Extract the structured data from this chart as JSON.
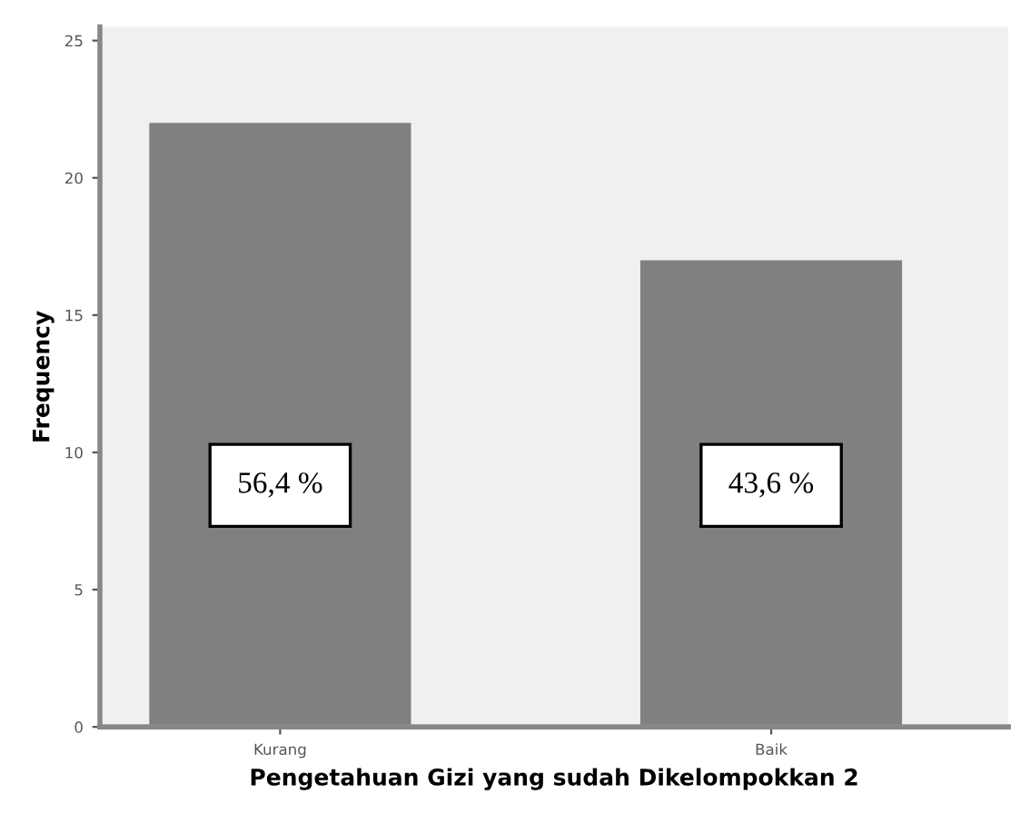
{
  "chart_data": {
    "type": "bar",
    "xlabel": "Pengetahuan Gizi yang sudah Dikelompokkan 2",
    "ylabel": "Frequency",
    "categories": [
      "Kurang",
      "Baik"
    ],
    "values": [
      22,
      17
    ],
    "color": "#808080",
    "ylim": [
      0,
      25.5
    ],
    "yticks": [
      0,
      5,
      10,
      15,
      20,
      25
    ],
    "grid": false,
    "legend": false,
    "annotations": [
      "56,4 %",
      "43,6 %"
    ]
  }
}
